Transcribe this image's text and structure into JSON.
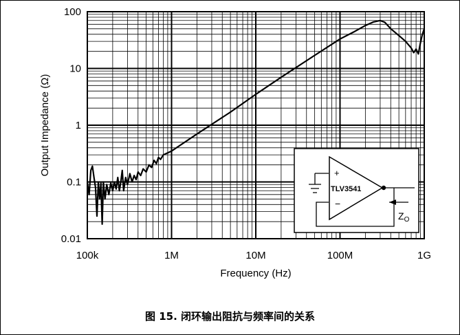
{
  "caption": "图 15. 闭环输出阻抗与频率间的关系",
  "chart_data": {
    "type": "line",
    "xscale": "log",
    "yscale": "log",
    "xlabel": "Frequency (Hz)",
    "ylabel": "Output Impedance (Ω)",
    "xlim": [
      100000,
      1000000000
    ],
    "ylim": [
      0.01,
      100
    ],
    "grid": true,
    "x_ticks": [
      {
        "value": 100000,
        "label": "100k"
      },
      {
        "value": 1000000,
        "label": "1M"
      },
      {
        "value": 10000000,
        "label": "10M"
      },
      {
        "value": 100000000,
        "label": "100M"
      },
      {
        "value": 1000000000,
        "label": "1G"
      }
    ],
    "y_ticks": [
      {
        "value": 0.01,
        "label": "0.01"
      },
      {
        "value": 0.1,
        "label": "0.1"
      },
      {
        "value": 1,
        "label": "1"
      },
      {
        "value": 10,
        "label": "10"
      },
      {
        "value": 100,
        "label": "100"
      }
    ],
    "series": [
      {
        "color": "#000000",
        "points": [
          [
            100000,
            0.1
          ],
          [
            105000,
            0.06
          ],
          [
            110000,
            0.16
          ],
          [
            115000,
            0.19
          ],
          [
            120000,
            0.12
          ],
          [
            125000,
            0.08
          ],
          [
            130000,
            0.025
          ],
          [
            135000,
            0.1
          ],
          [
            140000,
            0.05
          ],
          [
            145000,
            0.095
          ],
          [
            150000,
            0.018
          ],
          [
            155000,
            0.1
          ],
          [
            162000,
            0.05
          ],
          [
            170000,
            0.09
          ],
          [
            180000,
            0.06
          ],
          [
            190000,
            0.095
          ],
          [
            200000,
            0.07
          ],
          [
            210000,
            0.1
          ],
          [
            220000,
            0.075
          ],
          [
            230000,
            0.12
          ],
          [
            240000,
            0.07
          ],
          [
            250000,
            0.1
          ],
          [
            260000,
            0.16
          ],
          [
            270000,
            0.07
          ],
          [
            285000,
            0.12
          ],
          [
            300000,
            0.09
          ],
          [
            320000,
            0.14
          ],
          [
            340000,
            0.1
          ],
          [
            360000,
            0.13
          ],
          [
            380000,
            0.11
          ],
          [
            400000,
            0.15
          ],
          [
            430000,
            0.13
          ],
          [
            460000,
            0.17
          ],
          [
            500000,
            0.15
          ],
          [
            540000,
            0.2
          ],
          [
            580000,
            0.18
          ],
          [
            620000,
            0.24
          ],
          [
            660000,
            0.21
          ],
          [
            700000,
            0.27
          ],
          [
            740000,
            0.25
          ],
          [
            800000,
            0.3
          ],
          [
            1000000,
            0.35
          ],
          [
            2000000,
            0.7
          ],
          [
            5000000,
            1.7
          ],
          [
            10000000,
            3.5
          ],
          [
            20000000,
            7
          ],
          [
            50000000,
            17
          ],
          [
            100000000,
            33
          ],
          [
            150000000,
            45
          ],
          [
            200000000,
            57
          ],
          [
            250000000,
            66
          ],
          [
            300000000,
            70
          ],
          [
            340000000,
            65
          ],
          [
            400000000,
            50
          ],
          [
            500000000,
            38
          ],
          [
            600000000,
            30
          ],
          [
            700000000,
            23
          ],
          [
            750000000,
            19
          ],
          [
            800000000,
            22
          ],
          [
            850000000,
            18
          ],
          [
            900000000,
            28
          ],
          [
            950000000,
            40
          ],
          [
            1000000000,
            50
          ]
        ]
      }
    ],
    "inset": {
      "part_label": "TLV3541",
      "plus_label": "+",
      "minus_label": "−",
      "z_main": "Z",
      "z_sub": "O"
    }
  }
}
